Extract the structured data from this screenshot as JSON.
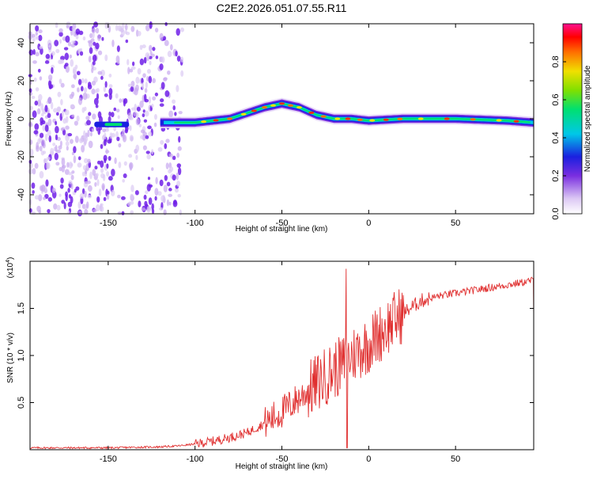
{
  "title": "C2E2.2026.051.07.55.R11",
  "chart_data": [
    {
      "type": "heatmap",
      "id": "spectrogram",
      "xlabel": "Height of straight line (km)",
      "ylabel": "Frequency (Hz)",
      "xlim": [
        -195,
        95
      ],
      "ylim": [
        -50,
        50
      ],
      "xticks": [
        -150,
        -100,
        -50,
        0,
        50
      ],
      "yticks": [
        -40,
        -20,
        0,
        20,
        40
      ],
      "colorbar": {
        "label": "Normalized spectral amplitude",
        "range": [
          0,
          1
        ],
        "ticks": [
          0.0,
          0.2,
          0.4,
          0.6,
          0.8
        ]
      },
      "ridge": {
        "description_points_x": [
          -150,
          -120,
          -100,
          -80,
          -70,
          -60,
          -50,
          -40,
          -30,
          -20,
          -10,
          0,
          20,
          50,
          80,
          95
        ],
        "description_points_freq": [
          -3,
          -2,
          -2,
          0,
          3,
          6,
          8,
          6,
          2,
          0,
          0,
          -1,
          0,
          0,
          -1,
          -2
        ]
      }
    },
    {
      "type": "line",
      "id": "snr",
      "xlabel": "Height of straight line (km)",
      "ylabel": "SNR (10 * v/v)",
      "multiplier": "(x10",
      "multiplier_exp": "4",
      "xlim": [
        -195,
        95
      ],
      "ylim": [
        0,
        2.0
      ],
      "xticks": [
        -150,
        -100,
        -50,
        0,
        50
      ],
      "yticks": [
        0.5,
        1.0,
        1.5
      ],
      "color": "#e03030",
      "trend_x": [
        -195,
        -150,
        -120,
        -110,
        -100,
        -90,
        -80,
        -70,
        -60,
        -50,
        -40,
        -30,
        -20,
        -15,
        -10,
        0,
        10,
        20,
        30,
        40,
        50,
        60,
        70,
        80,
        90,
        95
      ],
      "trend_y": [
        0.02,
        0.02,
        0.03,
        0.04,
        0.06,
        0.09,
        0.13,
        0.18,
        0.28,
        0.4,
        0.55,
        0.7,
        0.85,
        0.9,
        1.0,
        1.12,
        1.3,
        1.45,
        1.58,
        1.63,
        1.66,
        1.69,
        1.72,
        1.75,
        1.78,
        1.8
      ],
      "spike": {
        "x": -13,
        "y": 1.92
      },
      "dip": {
        "x": -13,
        "y": 0.02
      }
    }
  ]
}
